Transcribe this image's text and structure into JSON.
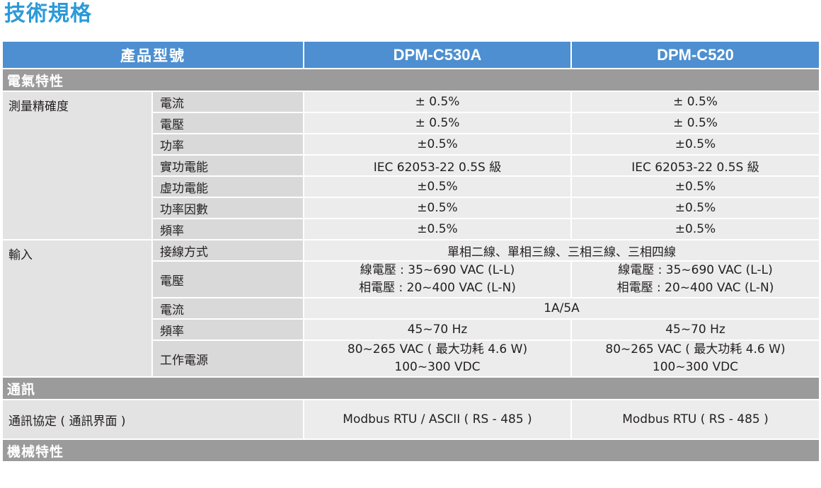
{
  "page_title": "技術規格",
  "header": {
    "label": "產品型號",
    "models": [
      "DPM-C530A",
      "DPM-C520"
    ]
  },
  "sections": {
    "electrical": "電氣特性",
    "communication": "通訊",
    "mechanical": "機械特性"
  },
  "accuracy": {
    "category": "測量精確度",
    "rows": [
      {
        "label": "電流",
        "a": "± 0.5%",
        "b": "± 0.5%"
      },
      {
        "label": "電壓",
        "a": "± 0.5%",
        "b": "± 0.5%"
      },
      {
        "label": "功率",
        "a": "±0.5%",
        "b": "±0.5%"
      },
      {
        "label": "實功電能",
        "a": "IEC 62053-22 0.5S 級",
        "b": "IEC 62053-22 0.5S 級"
      },
      {
        "label": "虛功電能",
        "a": "±0.5%",
        "b": "±0.5%"
      },
      {
        "label": "功率因數",
        "a": "±0.5%",
        "b": "±0.5%"
      },
      {
        "label": "頻率",
        "a": "±0.5%",
        "b": "±0.5%"
      }
    ]
  },
  "input": {
    "category": "輸入",
    "wiring": {
      "label": "接線方式",
      "value": "單相二線、單相三線、三相三線、三相四線"
    },
    "voltage": {
      "label": "電壓",
      "a1": "線電壓 : 35~690 VAC (L-L)",
      "a2": "相電壓 : 20~400 VAC (L-N)",
      "b1": "線電壓 : 35~690 VAC (L-L)",
      "b2": "相電壓 : 20~400 VAC (L-N)"
    },
    "current": {
      "label": "電流",
      "value": "1A/5A"
    },
    "frequency": {
      "label": "頻率",
      "a": "45~70 Hz",
      "b": "45~70 Hz"
    },
    "power": {
      "label": "工作電源",
      "a1": "80~265 VAC ( 最大功耗 4.6 W)",
      "a2": "100~300 VDC",
      "b1": "80~265 VAC ( 最大功耗 4.6 W)",
      "b2": "100~300 VDC"
    }
  },
  "comm": {
    "label": "通訊協定 ( 通訊界面 )",
    "a": "Modbus RTU / ASCII ( RS - 485 )",
    "b": "Modbus RTU ( RS - 485 )"
  }
}
